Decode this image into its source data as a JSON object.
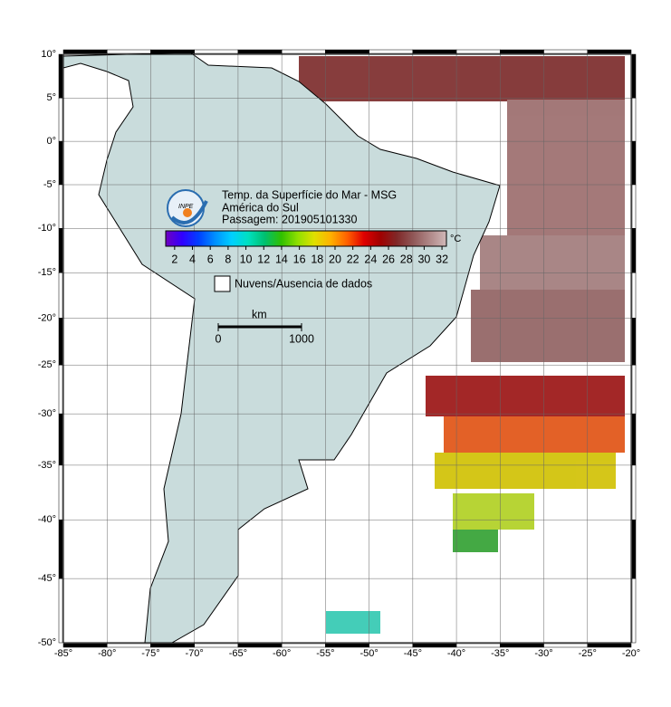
{
  "map": {
    "title": "Temp. da Superfície do Mar - MSG",
    "subtitle": "América do Sul",
    "pass": "Passagem: 201905101330",
    "projection": "mercator",
    "grid": true,
    "xlim": [
      -85,
      -20
    ],
    "ylim": [
      -50,
      10
    ],
    "xticks": [
      {
        "value": -85,
        "label": "-85°"
      },
      {
        "value": -80,
        "label": "-80°"
      },
      {
        "value": -75,
        "label": "-75°"
      },
      {
        "value": -70,
        "label": "-70°"
      },
      {
        "value": -65,
        "label": "-65°"
      },
      {
        "value": -60,
        "label": "-60°"
      },
      {
        "value": -55,
        "label": "-55°"
      },
      {
        "value": -50,
        "label": "-50°"
      },
      {
        "value": -45,
        "label": "-45°"
      },
      {
        "value": -40,
        "label": "-40°"
      },
      {
        "value": -35,
        "label": "-35°"
      },
      {
        "value": -30,
        "label": "-30°"
      },
      {
        "value": -25,
        "label": "-25°"
      },
      {
        "value": -20,
        "label": "-20°"
      }
    ],
    "yticks": [
      {
        "value": 10,
        "label": "10°"
      },
      {
        "value": 5,
        "label": "5°"
      },
      {
        "value": 0,
        "label": "0°"
      },
      {
        "value": -5,
        "label": "-5°"
      },
      {
        "value": -10,
        "label": "-10°"
      },
      {
        "value": -15,
        "label": "-15°"
      },
      {
        "value": -20,
        "label": "-20°"
      },
      {
        "value": -25,
        "label": "-25°"
      },
      {
        "value": -30,
        "label": "-30°"
      },
      {
        "value": -35,
        "label": "-35°"
      },
      {
        "value": -40,
        "label": "-40°"
      },
      {
        "value": -45,
        "label": "-45°"
      },
      {
        "value": -50,
        "label": "-50°"
      }
    ],
    "colorbar": {
      "unit": "°C",
      "clim": [
        1,
        32.5
      ],
      "ticks": [
        2,
        4,
        6,
        8,
        10,
        12,
        14,
        16,
        18,
        20,
        22,
        24,
        26,
        28,
        30,
        32
      ],
      "colors": [
        "#7000c0",
        "#3000ff",
        "#0040ff",
        "#0090ff",
        "#00d0ff",
        "#00e0c0",
        "#00c070",
        "#30c000",
        "#90e000",
        "#e0e000",
        "#ffb000",
        "#ff6000",
        "#e00000",
        "#a00000",
        "#802828",
        "#905858",
        "#b08888",
        "#d0b8b8"
      ]
    },
    "legend": "Nuvens/Ausencia de dados",
    "scale_bar": {
      "unit": "km",
      "ticks": [
        0,
        1000
      ]
    },
    "logo": "INPE"
  }
}
